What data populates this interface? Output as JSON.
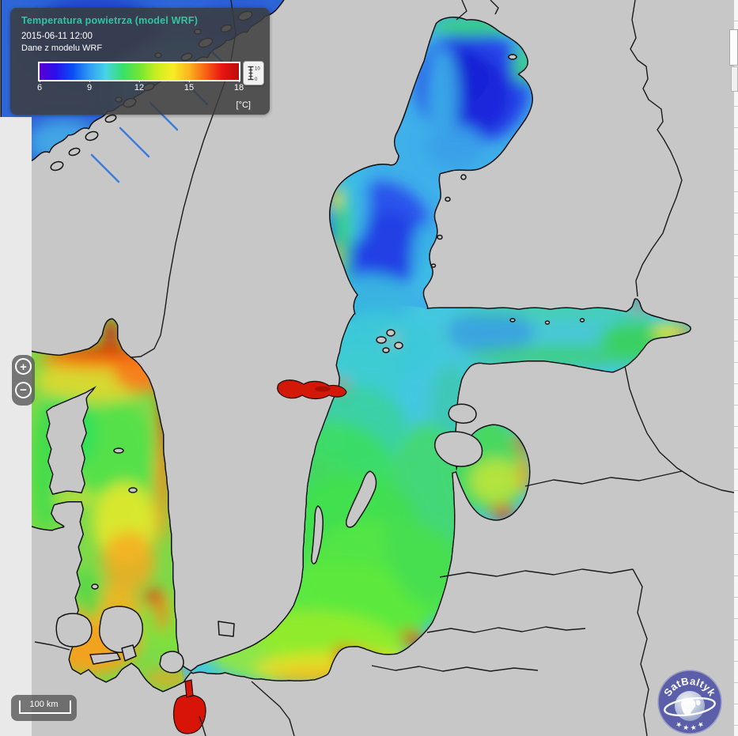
{
  "panel": {
    "title": "Temperatura powietrza (model WRF)",
    "title_color": "#2fc7a2",
    "datetime": "2015-06-11 12:00",
    "source": "Dane z modelu WRF",
    "legend": {
      "ticks": [
        "6",
        "9",
        "12",
        "15",
        "18"
      ],
      "unit": "[°C]",
      "gradient": [
        "#5a00d0",
        "#2a10ee",
        "#0a50f4",
        "#2f9cf4",
        "#46d4e6",
        "#38e06a",
        "#70e634",
        "#c8ee20",
        "#f6ee24",
        "#fcb41e",
        "#f86114",
        "#e81410",
        "#b80e0c"
      ],
      "scale_button": {
        "top_label": "10",
        "bottom_label": "0"
      }
    }
  },
  "zoom_controls": {
    "zoom_in": "+",
    "zoom_out": "−"
  },
  "scalebar": {
    "label": "100 km"
  },
  "logo": {
    "text": "SatBaltyk",
    "stars": "★ ★ ★ ★"
  },
  "map": {
    "land_color": "#c7c7c7",
    "outside_left_color": "#e9e9e9",
    "coastline_color": "#0e0e0e",
    "border_color": "#1b1b1b",
    "sea_base_color": "#44c8e0"
  }
}
